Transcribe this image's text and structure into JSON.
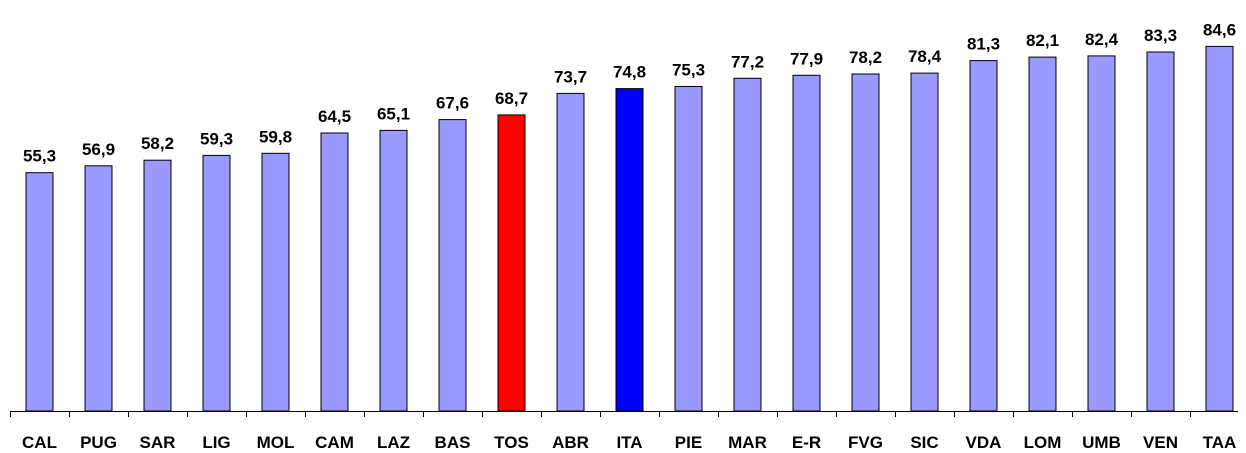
{
  "chart_data": {
    "type": "bar",
    "categories": [
      "CAL",
      "PUG",
      "SAR",
      "LIG",
      "MOL",
      "CAM",
      "LAZ",
      "BAS",
      "TOS",
      "ABR",
      "ITA",
      "PIE",
      "MAR",
      "E-R",
      "FVG",
      "SIC",
      "VDA",
      "LOM",
      "UMB",
      "VEN",
      "TAA"
    ],
    "values": [
      55.3,
      56.9,
      58.2,
      59.3,
      59.8,
      64.5,
      65.1,
      67.6,
      68.7,
      73.7,
      74.8,
      75.3,
      77.2,
      77.9,
      78.2,
      78.4,
      81.3,
      82.1,
      82.4,
      83.3,
      84.6
    ],
    "value_labels": [
      "55,3",
      "56,9",
      "58,2",
      "59,3",
      "59,8",
      "64,5",
      "65,1",
      "67,6",
      "68,7",
      "73,7",
      "74,8",
      "75,3",
      "77,2",
      "77,9",
      "78,2",
      "78,4",
      "81,3",
      "82,1",
      "82,4",
      "83,3",
      "84,6"
    ],
    "ylim": [
      0,
      100
    ],
    "grid": false,
    "legend": "none",
    "colors": {
      "default": "#9999ff",
      "highlights": {
        "TOS": "#ff0000",
        "ITA": "#0000ff"
      }
    }
  }
}
